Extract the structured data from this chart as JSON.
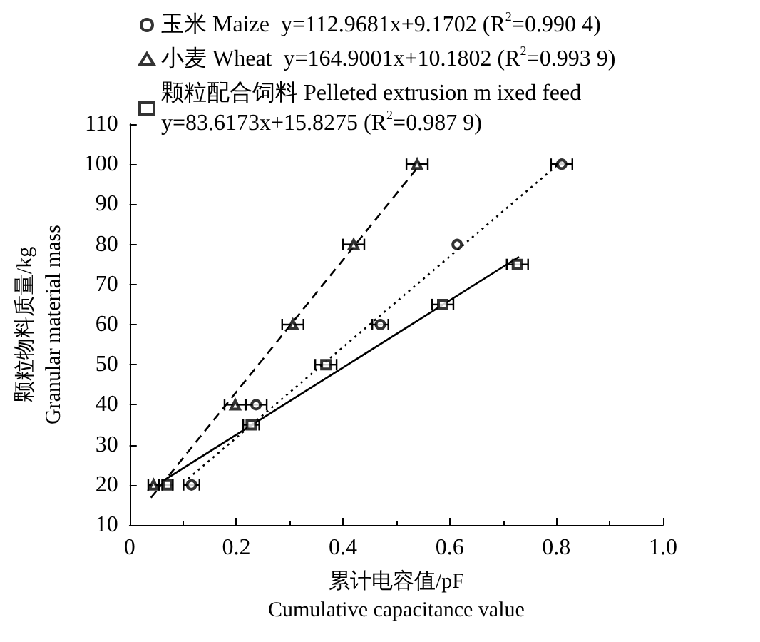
{
  "chart_data": {
    "type": "scatter",
    "xlabel": "累计电容值/pF\nCumulative capacitance value",
    "ylabel": "颗粒物料质量/kg\nGranular material mass",
    "xlim": [
      0,
      1
    ],
    "xticks": [
      0,
      0.2,
      0.4,
      0.6,
      0.8,
      {
        "value": 1,
        "label": "1.0"
      }
    ],
    "ylim": [
      10,
      110
    ],
    "yticks": [
      10,
      20,
      30,
      40,
      50,
      60,
      70,
      80,
      90,
      100,
      110
    ],
    "grid": false,
    "legend": "top left",
    "series": [
      {
        "name": "玉米 Maize  y=112.9681x+9.1702 (R$^{2}$=0.990 4)",
        "type": "scatter",
        "marker": "circle",
        "color": "#000000",
        "x": [
          0.116,
          0.237,
          0.47,
          0.614,
          0.81
        ],
        "values": [
          20,
          40,
          60,
          80,
          100
        ],
        "xerrors": [
          0.015,
          0.02,
          0.015,
          null,
          0.02
        ]
      },
      {
        "name": "小麦 Wheat  y=164.9001x+10.1802 (R$^{2}$=0.993 9)",
        "type": "scatter",
        "marker": "triangle",
        "color": "#000000",
        "x": [
          0.045,
          0.198,
          0.306,
          0.42,
          0.539
        ],
        "values": [
          20,
          40,
          60,
          80,
          100
        ],
        "xerrors": [
          0.01,
          0.02,
          0.02,
          0.02,
          0.02
        ]
      },
      {
        "name": "颗粒配合饲料 Pelleted extrusion m ixed feed\ny=83.6173x+15.8275 (R$^{2}$=0.987 9)",
        "type": "scatter",
        "marker": "square",
        "color": "#000000",
        "x": [
          0.071,
          0.228,
          0.368,
          0.587,
          0.727
        ],
        "values": [
          20,
          35,
          50,
          65,
          75
        ],
        "xerrors": [
          0.01,
          0.015,
          0.02,
          0.02,
          0.02
        ]
      },
      {
        "type": "line",
        "line_style": "dotted",
        "color": "#000000",
        "x": [
          0.11,
          0.81
        ],
        "values": [
          21.6,
          100.7
        ]
      },
      {
        "type": "line",
        "line_style": "dashed",
        "color": "#000000",
        "x": [
          0.04,
          0.54
        ],
        "values": [
          16.8,
          99.2
        ]
      },
      {
        "type": "line",
        "line_style": "solid",
        "color": "#000000",
        "x": [
          0.06,
          0.73
        ],
        "values": [
          20.8,
          76.9
        ]
      }
    ]
  }
}
